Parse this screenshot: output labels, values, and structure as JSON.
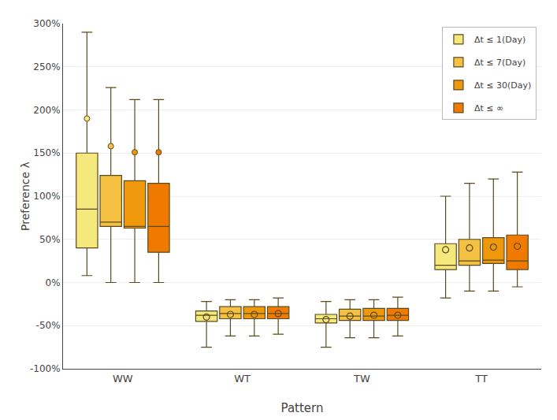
{
  "chart_data": {
    "type": "box",
    "xlabel": "Pattern",
    "ylabel": "Preference λ",
    "categories": [
      "WW",
      "WT",
      "TW",
      "TT"
    ],
    "series": [
      {
        "name": "Δt ≤ 1(Day)",
        "color": "#F5E87C",
        "values": [
          {
            "lowerfence": 8,
            "q1": 40,
            "median": 85,
            "q3": 150,
            "upperfence": 290,
            "fliers": [
              190
            ],
            "mean": null
          },
          {
            "lowerfence": -75,
            "q1": -45,
            "median": -38,
            "q3": -33,
            "upperfence": -22,
            "fliers": [],
            "mean": -40
          },
          {
            "lowerfence": -75,
            "q1": -47,
            "median": -42,
            "q3": -37,
            "upperfence": -22,
            "fliers": [],
            "mean": -43
          },
          {
            "lowerfence": -18,
            "q1": 15,
            "median": 20,
            "q3": 45,
            "upperfence": 100,
            "fliers": [],
            "mean": 38
          }
        ]
      },
      {
        "name": "Δt ≤ 7(Day)",
        "color": "#F5C142",
        "values": [
          {
            "lowerfence": 0,
            "q1": 65,
            "median": 70,
            "q3": 124,
            "upperfence": 226,
            "fliers": [
              158
            ],
            "mean": null
          },
          {
            "lowerfence": -62,
            "q1": -42,
            "median": -36,
            "q3": -28,
            "upperfence": -20,
            "fliers": [],
            "mean": -37
          },
          {
            "lowerfence": -64,
            "q1": -44,
            "median": -39,
            "q3": -31,
            "upperfence": -20,
            "fliers": [],
            "mean": -39
          },
          {
            "lowerfence": -10,
            "q1": 20,
            "median": 25,
            "q3": 50,
            "upperfence": 115,
            "fliers": [],
            "mean": 40
          }
        ]
      },
      {
        "name": "Δt ≤ 30(Day)",
        "color": "#F0980C",
        "values": [
          {
            "lowerfence": 0,
            "q1": 63,
            "median": 65,
            "q3": 118,
            "upperfence": 212,
            "fliers": [
              151
            ],
            "mean": null
          },
          {
            "lowerfence": -62,
            "q1": -42,
            "median": -36,
            "q3": -28,
            "upperfence": -20,
            "fliers": [],
            "mean": -37
          },
          {
            "lowerfence": -64,
            "q1": -44,
            "median": -39,
            "q3": -30,
            "upperfence": -20,
            "fliers": [],
            "mean": -38
          },
          {
            "lowerfence": -10,
            "q1": 22,
            "median": 26,
            "q3": 52,
            "upperfence": 120,
            "fliers": [],
            "mean": 41
          }
        ]
      },
      {
        "name": "Δt ≤ ∞",
        "color": "#F07A00",
        "values": [
          {
            "lowerfence": 0,
            "q1": 35,
            "median": 65,
            "q3": 115,
            "upperfence": 212,
            "fliers": [
              151
            ],
            "mean": null
          },
          {
            "lowerfence": -60,
            "q1": -42,
            "median": -36,
            "q3": -28,
            "upperfence": -18,
            "fliers": [],
            "mean": -36
          },
          {
            "lowerfence": -62,
            "q1": -44,
            "median": -38,
            "q3": -30,
            "upperfence": -17,
            "fliers": [],
            "mean": -38
          },
          {
            "lowerfence": -5,
            "q1": 15,
            "median": 25,
            "q3": 55,
            "upperfence": 128,
            "fliers": [],
            "mean": 42
          }
        ]
      }
    ],
    "ylim": [
      -100,
      300
    ],
    "yticks": [
      {
        "value": -100,
        "label": "-100%"
      },
      {
        "value": -50,
        "label": "-50%"
      },
      {
        "value": 0,
        "label": "0%"
      },
      {
        "value": 50,
        "label": "50%"
      },
      {
        "value": 100,
        "label": "100%"
      },
      {
        "value": 150,
        "label": "150%"
      },
      {
        "value": 200,
        "label": "200%"
      },
      {
        "value": 250,
        "label": "250%"
      },
      {
        "value": 300,
        "label": "300%"
      }
    ],
    "grid": true,
    "legend": "upper right"
  }
}
